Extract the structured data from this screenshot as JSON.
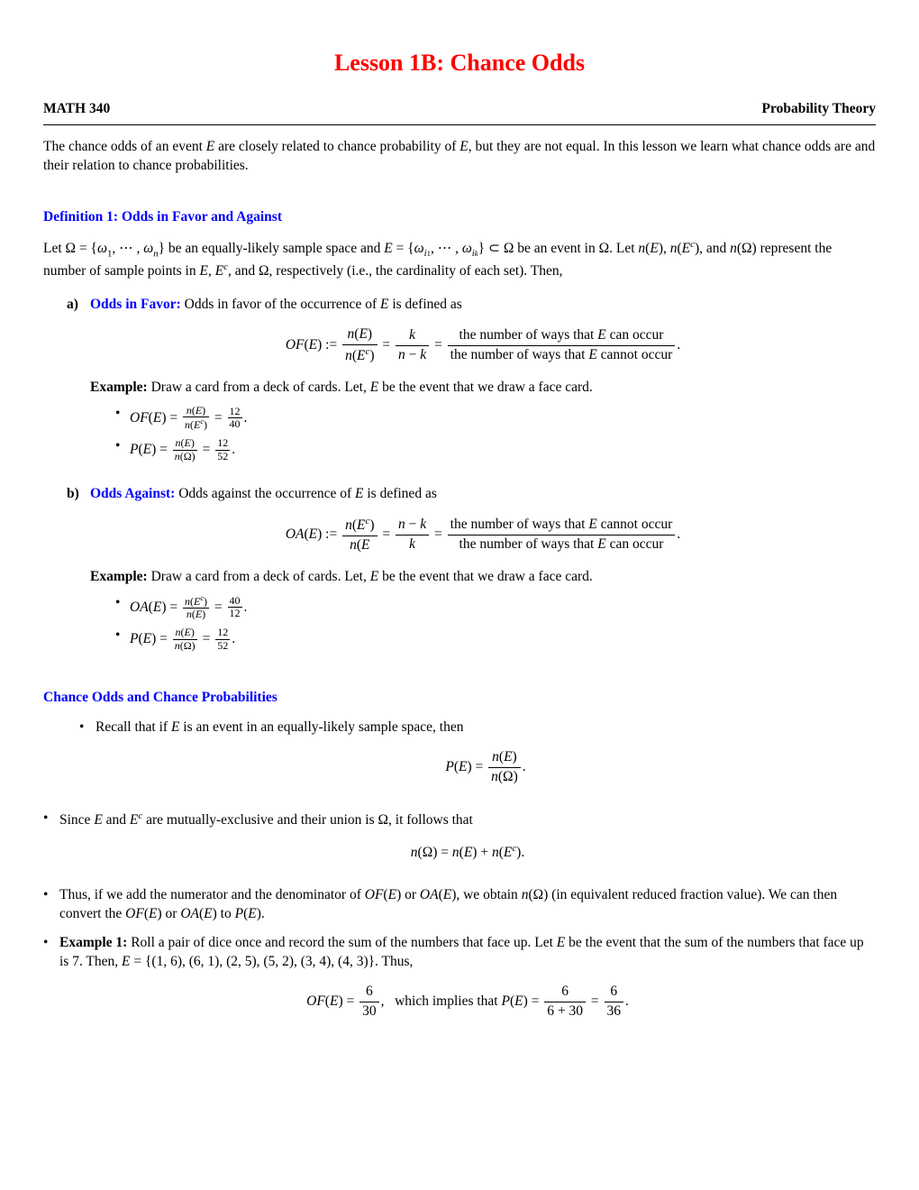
{
  "title": "Lesson 1B: Chance Odds",
  "course_code": "MATH 340",
  "course_name": "Probability Theory",
  "title_color": "#ff0000",
  "heading_color": "#0000ff",
  "intro": "The chance odds of an event E are closely related to chance probability of E, but they are not equal. In this lesson we learn what chance odds are and their relation to chance probabilities.",
  "def1_heading": "Definition 1: Odds in Favor and Against",
  "def1_intro_pre": "Let Ω = {ω",
  "def1_intro_post": "} be an equally-likely sample space and E = {ω",
  "def1_intro_tail": "} ⊂ Ω be an event in Ω. Let n(E), n(Eᶜ), and n(Ω) represent the number of sample points in E, Eᶜ, and Ω, respectively (i.e., the cardinality of each set). Then,",
  "part_a": {
    "label": "a)",
    "term": "Odds in Favor:",
    "text": " Odds in favor of the occurrence of E is defined as",
    "eq_lhs": "OF(E) :=",
    "frac1_num": "n(E)",
    "frac1_den": "n(Eᶜ)",
    "frac2_num": "k",
    "frac2_den": "n − k",
    "frac3_num": "the number of ways that E can occur",
    "frac3_den": "the number of ways that E cannot occur",
    "example_label": "Example:",
    "example_text": " Draw a card from a deck of cards. Let, E be the event that we draw a face card.",
    "b1_lhs": "OF(E) =",
    "b1_mid_num": "n(E)",
    "b1_mid_den": "n(Eᶜ)",
    "b1_rhs_num": "12",
    "b1_rhs_den": "40",
    "b2_lhs": "P(E) =",
    "b2_mid_num": "n(E)",
    "b2_mid_den": "n(Ω)",
    "b2_rhs_num": "12",
    "b2_rhs_den": "52"
  },
  "part_b": {
    "label": "b)",
    "term": "Odds Against:",
    "text": " Odds against the occurrence of E is defined as",
    "eq_lhs": "OA(E) :=",
    "frac1_num": "n(Eᶜ)",
    "frac1_den": "n(E",
    "frac2_num": "n − k",
    "frac2_den": "k",
    "frac3_num": "the number of ways that E cannot occur",
    "frac3_den": "the number of ways that E can occur",
    "example_label": "Example:",
    "example_text": " Draw a card from a deck of cards. Let, E be the event that we draw a face card.",
    "b1_lhs": "OA(E) =",
    "b1_mid_num": "n(Eᶜ)",
    "b1_mid_den": "n(E)",
    "b1_rhs_num": "40",
    "b1_rhs_den": "12",
    "b2_lhs": "P(E) =",
    "b2_mid_num": "n(E)",
    "b2_mid_den": "n(Ω)",
    "b2_rhs_num": "12",
    "b2_rhs_den": "52"
  },
  "sec2_heading": "Chance Odds and Chance Probabilities",
  "bullets": {
    "b1_text": "Recall that if E is an event in an equally-likely sample space, then",
    "b1_eq_lhs": "P(E) =",
    "b1_eq_num": "n(E)",
    "b1_eq_den": "n(Ω)",
    "b2_text": "Since E and Eᶜ are mutually-exclusive and their union is Ω, it follows that",
    "b2_eq": "n(Ω) = n(E) + n(Eᶜ).",
    "b3_text": "Thus, if we add the numerator and the denominator of OF(E) or OA(E), we obtain n(Ω) (in equivalent reduced fraction value). We can then convert the OF(E) or OA(E) to P(E).",
    "b4_label": "Example 1:",
    "b4_text": " Roll a pair of dice once and record the sum of the numbers that face up. Let E be the event that the sum of the numbers that face up is 7. Then, E = {(1, 6), (6, 1), (2, 5), (5, 2), (3, 4), (4, 3)}. Thus,",
    "b4_eq_lhs": "OF(E) =",
    "b4_eq_f1_num": "6",
    "b4_eq_f1_den": "30",
    "b4_eq_mid": ",   which implies that P(E) =",
    "b4_eq_f2_num": "6",
    "b4_eq_f2_den": "6 + 30",
    "b4_eq_f3_num": "6",
    "b4_eq_f3_den": "36"
  }
}
